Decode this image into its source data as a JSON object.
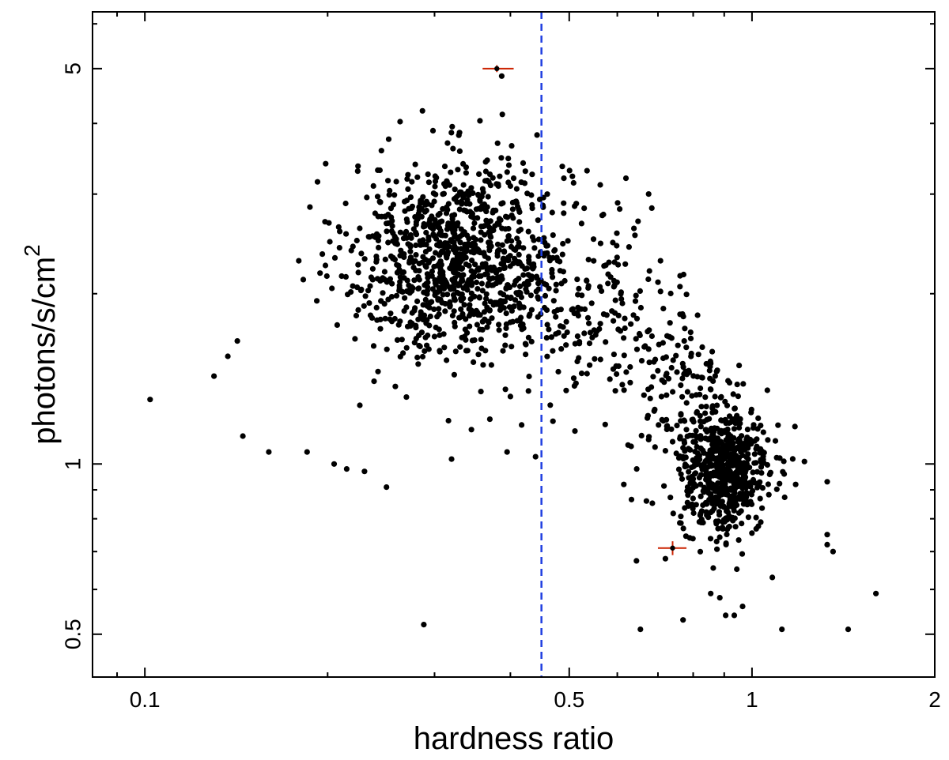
{
  "chart_data": {
    "type": "scatter",
    "xlabel": "hardness ratio",
    "ylabel_base": "photons/s/cm",
    "ylabel_superscript": "2",
    "x_scale": "log",
    "y_scale": "log",
    "xlim": [
      0.082,
      2.0
    ],
    "ylim": [
      0.42,
      6.3
    ],
    "x_ticks": [
      {
        "value": 0.1,
        "label": "0.1"
      },
      {
        "value": 0.5,
        "label": "0.5"
      },
      {
        "value": 1,
        "label": "1"
      },
      {
        "value": 2,
        "label": "2"
      }
    ],
    "y_ticks": [
      {
        "value": 0.5,
        "label": "0.5"
      },
      {
        "value": 1,
        "label": "1"
      },
      {
        "value": 5,
        "label": "5"
      }
    ],
    "grid": false,
    "reference_line": {
      "axis": "x",
      "value": 0.45,
      "style": "dashed",
      "color": "#1f3fe0"
    },
    "point_color": "#000000",
    "highlight_color": "#cc2200",
    "clusters": [
      {
        "cx": 0.33,
        "cy": 2.3,
        "sx": 0.21,
        "sy": 0.2,
        "n": 1050
      },
      {
        "cx": 0.58,
        "cy": 1.85,
        "sx": 0.15,
        "sy": 0.2,
        "n": 170
      },
      {
        "cx": 0.9,
        "cy": 0.97,
        "sx": 0.085,
        "sy": 0.13,
        "n": 620
      },
      {
        "cx": 0.78,
        "cy": 1.3,
        "sx": 0.1,
        "sy": 0.16,
        "n": 110
      }
    ],
    "points": [
      [
        0.102,
        1.3
      ],
      [
        0.13,
        1.43
      ],
      [
        0.145,
        1.12
      ],
      [
        0.137,
        1.55
      ],
      [
        0.142,
        1.65
      ],
      [
        0.16,
        1.05
      ],
      [
        0.185,
        1.05
      ],
      [
        0.205,
        1.0
      ],
      [
        0.215,
        0.98
      ],
      [
        0.226,
        1.27
      ],
      [
        0.23,
        0.97
      ],
      [
        0.25,
        0.91
      ],
      [
        0.288,
        0.52
      ],
      [
        0.32,
        1.02
      ],
      [
        0.345,
        1.15
      ],
      [
        0.37,
        1.2
      ],
      [
        0.395,
        1.05
      ],
      [
        0.44,
        1.03
      ],
      [
        0.387,
        4.85
      ],
      [
        0.388,
        4.15
      ],
      [
        0.4,
        3.1
      ],
      [
        0.405,
        3.2
      ],
      [
        0.46,
        3.0
      ],
      [
        0.49,
        3.2
      ],
      [
        0.535,
        3.3
      ],
      [
        0.62,
        3.2
      ],
      [
        0.655,
        0.51
      ],
      [
        0.625,
        1.08
      ],
      [
        0.72,
        0.68
      ],
      [
        0.77,
        0.53
      ],
      [
        0.79,
        0.74
      ],
      [
        0.855,
        0.59
      ],
      [
        0.885,
        0.58
      ],
      [
        0.905,
        0.54
      ],
      [
        0.935,
        0.54
      ],
      [
        0.965,
        0.56
      ],
      [
        1.08,
        0.63
      ],
      [
        1.12,
        0.51
      ],
      [
        1.33,
        0.75
      ],
      [
        1.33,
        0.72
      ],
      [
        1.36,
        0.7
      ],
      [
        1.44,
        0.51
      ],
      [
        1.6,
        0.59
      ],
      [
        1.22,
        1.01
      ],
      [
        1.33,
        0.93
      ],
      [
        1.06,
        1.35
      ],
      [
        1.13,
        0.96
      ],
      [
        1.18,
        0.92
      ],
      [
        0.615,
        0.92
      ],
      [
        0.67,
        0.86
      ]
    ],
    "highlighted_points": [
      {
        "x": 0.38,
        "y": 5.0,
        "x_err": [
          0.36,
          0.405
        ],
        "y_err": [
          4.93,
          5.07
        ]
      },
      {
        "x": 0.74,
        "y": 0.71,
        "x_err": [
          0.7,
          0.78
        ],
        "y_err": [
          0.69,
          0.73
        ]
      }
    ]
  }
}
